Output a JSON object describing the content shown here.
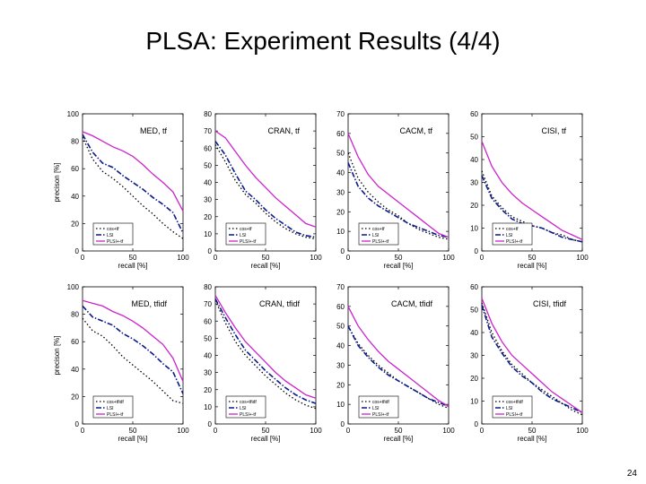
{
  "slide": {
    "title": "PLSA: Experiment Results (4/4)",
    "page_number": "24"
  },
  "colors": {
    "baseline": "#000000",
    "lsi": "#0a1a8a",
    "plsi": "#cc22cc"
  },
  "chart_data": [
    {
      "type": "line",
      "title": "MED, tf",
      "xlabel": "recall [%]",
      "ylabel": "precison [%]",
      "xlim": [
        0,
        100
      ],
      "ylim": [
        0,
        100
      ],
      "yticks": [
        0,
        20,
        40,
        60,
        80,
        100
      ],
      "xticks": [
        0,
        50,
        100
      ],
      "legend": [
        "cos+tf",
        "LSI",
        "PLSI+-tf"
      ],
      "legend_position": "bottom-left",
      "x": [
        0,
        10,
        20,
        30,
        40,
        50,
        60,
        70,
        80,
        90,
        100
      ],
      "series": [
        {
          "name": "cos+tf",
          "values": [
            83,
            67,
            58,
            53,
            47,
            40,
            33,
            27,
            20,
            14,
            9
          ]
        },
        {
          "name": "LSI",
          "values": [
            85,
            72,
            64,
            61,
            55,
            50,
            45,
            39,
            34,
            28,
            13
          ]
        },
        {
          "name": "PLSI+-tf",
          "values": [
            87,
            84,
            80,
            76,
            73,
            69,
            63,
            56,
            50,
            43,
            29
          ]
        }
      ]
    },
    {
      "type": "line",
      "title": "CRAN, tf",
      "xlabel": "recall [%]",
      "ylabel": "",
      "xlim": [
        0,
        100
      ],
      "ylim": [
        0,
        80
      ],
      "yticks": [
        0,
        10,
        20,
        30,
        40,
        50,
        60,
        70,
        80
      ],
      "xticks": [
        0,
        50,
        100
      ],
      "legend": [
        "cos+tf",
        "LSI",
        "PLSI+-tf"
      ],
      "legend_position": "bottom-left",
      "x": [
        0,
        10,
        20,
        30,
        40,
        50,
        60,
        70,
        80,
        90,
        100
      ],
      "series": [
        {
          "name": "cos+tf",
          "values": [
            62,
            52,
            41,
            33,
            28,
            22,
            17,
            13,
            10,
            8,
            7
          ]
        },
        {
          "name": "LSI",
          "values": [
            64,
            56,
            45,
            35,
            30,
            24,
            19,
            15,
            11,
            9,
            8
          ]
        },
        {
          "name": "PLSI+-tf",
          "values": [
            70,
            66,
            58,
            50,
            43,
            37,
            31,
            26,
            21,
            16,
            14
          ]
        }
      ]
    },
    {
      "type": "line",
      "title": "CACM, tf",
      "xlabel": "recall [%]",
      "ylabel": "",
      "xlim": [
        0,
        100
      ],
      "ylim": [
        0,
        70
      ],
      "yticks": [
        0,
        10,
        20,
        30,
        40,
        50,
        60,
        70
      ],
      "xticks": [
        0,
        50,
        100
      ],
      "legend": [
        "cos+tf",
        "LSI",
        "PLSI+-tf"
      ],
      "legend_position": "bottom-left",
      "x": [
        0,
        10,
        20,
        30,
        40,
        50,
        60,
        70,
        80,
        90,
        100
      ],
      "series": [
        {
          "name": "cos+tf",
          "values": [
            50,
            37,
            30,
            25,
            21,
            18,
            14,
            11,
            9,
            7,
            6
          ]
        },
        {
          "name": "LSI",
          "values": [
            45,
            33,
            27,
            23,
            20,
            17,
            14,
            12,
            10,
            8,
            7
          ]
        },
        {
          "name": "PLSI+-tf",
          "values": [
            60,
            48,
            39,
            33,
            29,
            25,
            21,
            17,
            13,
            9,
            7
          ]
        }
      ]
    },
    {
      "type": "line",
      "title": "CISI, tf",
      "xlabel": "recall [%]",
      "ylabel": "",
      "xlim": [
        0,
        100
      ],
      "ylim": [
        0,
        60
      ],
      "yticks": [
        0,
        10,
        20,
        30,
        40,
        50,
        60
      ],
      "xticks": [
        0,
        50,
        100
      ],
      "legend": [
        "cos+tf",
        "LSI",
        "PLSI+-tf"
      ],
      "legend_position": "bottom-left",
      "x": [
        0,
        10,
        20,
        30,
        40,
        50,
        60,
        70,
        80,
        90,
        100
      ],
      "series": [
        {
          "name": "cos+tf",
          "values": [
            35,
            24,
            19,
            15,
            13,
            11,
            10,
            8,
            7,
            5,
            4
          ]
        },
        {
          "name": "LSI",
          "values": [
            33,
            23,
            18,
            14,
            12,
            11,
            10,
            8,
            6,
            5,
            4
          ]
        },
        {
          "name": "PLSI+-tf",
          "values": [
            48,
            37,
            30,
            25,
            21,
            18,
            15,
            12,
            9,
            7,
            5
          ]
        }
      ]
    },
    {
      "type": "line",
      "title": "MED, tfidf",
      "xlabel": "recall [%]",
      "ylabel": "precison [%]",
      "xlim": [
        0,
        100
      ],
      "ylim": [
        0,
        100
      ],
      "yticks": [
        0,
        20,
        40,
        60,
        80,
        100
      ],
      "xticks": [
        0,
        50,
        100
      ],
      "legend": [
        "cos+tfidf",
        "LSI",
        "PLSI+-tf"
      ],
      "legend_position": "bottom-left",
      "x": [
        0,
        10,
        20,
        30,
        40,
        50,
        60,
        70,
        80,
        90,
        100
      ],
      "series": [
        {
          "name": "cos+tfidf",
          "values": [
            77,
            68,
            64,
            57,
            49,
            43,
            37,
            31,
            24,
            17,
            15
          ]
        },
        {
          "name": "LSI",
          "values": [
            86,
            78,
            75,
            72,
            66,
            62,
            57,
            51,
            44,
            38,
            22
          ]
        },
        {
          "name": "PLSI+-tf",
          "values": [
            90,
            88,
            86,
            82,
            79,
            75,
            70,
            64,
            58,
            48,
            31
          ]
        }
      ]
    },
    {
      "type": "line",
      "title": "CRAN, tfidf",
      "xlabel": "recall [%]",
      "ylabel": "",
      "xlim": [
        0,
        100
      ],
      "ylim": [
        0,
        80
      ],
      "yticks": [
        0,
        10,
        20,
        30,
        40,
        50,
        60,
        70,
        80
      ],
      "xticks": [
        0,
        50,
        100
      ],
      "legend": [
        "cos+tfidf",
        "LSI",
        "PLSI+-tf"
      ],
      "legend_position": "bottom-left",
      "x": [
        0,
        10,
        20,
        30,
        40,
        50,
        60,
        70,
        80,
        90,
        100
      ],
      "series": [
        {
          "name": "cos+tfidf",
          "values": [
            72,
            59,
            48,
            40,
            34,
            28,
            23,
            18,
            14,
            11,
            9
          ]
        },
        {
          "name": "LSI",
          "values": [
            73,
            62,
            52,
            43,
            37,
            31,
            26,
            21,
            17,
            14,
            12
          ]
        },
        {
          "name": "PLSI+-tf",
          "values": [
            75,
            65,
            56,
            48,
            42,
            36,
            30,
            25,
            21,
            17,
            15
          ]
        }
      ]
    },
    {
      "type": "line",
      "title": "CACM, tfidf",
      "xlabel": "recall [%]",
      "ylabel": "",
      "xlim": [
        0,
        100
      ],
      "ylim": [
        0,
        70
      ],
      "yticks": [
        0,
        10,
        20,
        30,
        40,
        50,
        60,
        70
      ],
      "xticks": [
        0,
        50,
        100
      ],
      "legend": [
        "cos+tfidf",
        "LSI",
        "PLSI+-tf"
      ],
      "legend_position": "bottom-left",
      "x": [
        0,
        10,
        20,
        30,
        40,
        50,
        60,
        70,
        80,
        90,
        100
      ],
      "series": [
        {
          "name": "cos+tfidf",
          "values": [
            50,
            41,
            35,
            30,
            26,
            22,
            19,
            16,
            13,
            10,
            8
          ]
        },
        {
          "name": "LSI",
          "values": [
            50,
            40,
            34,
            29,
            25,
            22,
            19,
            16,
            13,
            11,
            9
          ]
        },
        {
          "name": "PLSI+-tf",
          "values": [
            60,
            50,
            43,
            37,
            32,
            28,
            24,
            20,
            16,
            12,
            9
          ]
        }
      ]
    },
    {
      "type": "line",
      "title": "CISI, tfidf",
      "xlabel": "recall [%]",
      "ylabel": "",
      "xlim": [
        0,
        100
      ],
      "ylim": [
        0,
        60
      ],
      "yticks": [
        0,
        10,
        20,
        30,
        40,
        50,
        60
      ],
      "xticks": [
        0,
        50,
        100
      ],
      "legend": [
        "cos+tfidf",
        "LSI",
        "PLSI+-tf"
      ],
      "legend_position": "bottom-left",
      "x": [
        0,
        10,
        20,
        30,
        40,
        50,
        60,
        70,
        80,
        90,
        100
      ],
      "series": [
        {
          "name": "cos+tfidf",
          "values": [
            53,
            40,
            32,
            26,
            22,
            18,
            15,
            12,
            9,
            6,
            4
          ]
        },
        {
          "name": "LSI",
          "values": [
            52,
            38,
            31,
            25,
            21,
            18,
            14,
            11,
            9,
            7,
            5
          ]
        },
        {
          "name": "PLSI+-tf",
          "values": [
            55,
            44,
            36,
            30,
            26,
            22,
            18,
            14,
            11,
            8,
            5
          ]
        }
      ]
    }
  ]
}
